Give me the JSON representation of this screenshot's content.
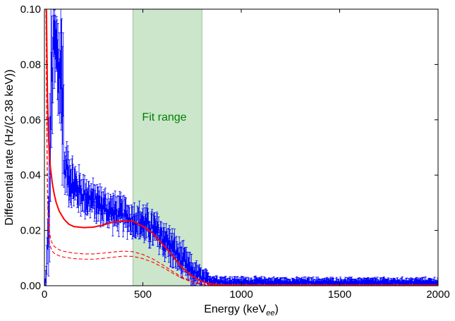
{
  "chart_data": {
    "type": "line",
    "xlabel": "Energy (keV",
    "xlabel_sub": "ee",
    "xlabel_close": ")",
    "ylabel": "Differential rate (Hz/(2.38 keV))",
    "xlim": [
      0,
      2000
    ],
    "ylim": [
      0,
      0.1
    ],
    "x_ticks": [
      0,
      500,
      1000,
      1500,
      2000
    ],
    "y_ticks": [
      0.0,
      0.02,
      0.04,
      0.06,
      0.08,
      0.1
    ],
    "y_tick_labels": [
      "0.00",
      "0.02",
      "0.04",
      "0.06",
      "0.08",
      "0.10"
    ],
    "grid": false,
    "fit_range": {
      "label": "Fit range",
      "x": [
        450,
        800
      ],
      "color": "#a9d6a9",
      "label_color": "#008000"
    },
    "data_envelope": {
      "color": "#0000ff",
      "x": [
        5,
        15,
        25,
        35,
        45,
        55,
        70,
        85,
        95,
        100,
        110,
        120,
        130,
        140,
        150,
        175,
        200,
        250,
        300,
        350,
        400,
        450,
        500,
        550,
        600,
        650,
        700,
        750,
        800,
        850,
        900,
        1000,
        1200,
        1500,
        1800,
        2000
      ],
      "high": [
        0.002,
        0.02,
        0.06,
        0.1,
        0.1,
        0.1,
        0.1,
        0.1,
        0.099,
        0.046,
        0.049,
        0.05,
        0.047,
        0.045,
        0.043,
        0.041,
        0.039,
        0.036,
        0.034,
        0.032,
        0.031,
        0.029,
        0.028,
        0.026,
        0.023,
        0.019,
        0.014,
        0.009,
        0.0055,
        0.0035,
        0.0028,
        0.0025,
        0.0023,
        0.0022,
        0.0022,
        0.0022
      ],
      "low": [
        0.0,
        0.002,
        0.01,
        0.04,
        0.07,
        0.07,
        0.06,
        0.05,
        0.04,
        0.036,
        0.035,
        0.033,
        0.031,
        0.03,
        0.029,
        0.028,
        0.027,
        0.025,
        0.023,
        0.021,
        0.02,
        0.019,
        0.017,
        0.015,
        0.012,
        0.008,
        0.004,
        0.001,
        0.0,
        0.0,
        0.0,
        0.0,
        0.0,
        0.0,
        0.0,
        0.0
      ]
    },
    "series": [
      {
        "style": "solid",
        "color": "#ff0000",
        "x": [
          10,
          15,
          20,
          25,
          30,
          40,
          50,
          60,
          75,
          100,
          125,
          150,
          200,
          250,
          300,
          350,
          400,
          450,
          500,
          550,
          600,
          650,
          700,
          750,
          800,
          850,
          900,
          1000,
          1500,
          2000
        ],
        "y": [
          0.1,
          0.07,
          0.055,
          0.047,
          0.043,
          0.037,
          0.033,
          0.03,
          0.027,
          0.024,
          0.0222,
          0.0214,
          0.021,
          0.0212,
          0.022,
          0.023,
          0.0235,
          0.0233,
          0.0215,
          0.019,
          0.015,
          0.011,
          0.0065,
          0.0035,
          0.0015,
          0.0006,
          0.0003,
          0.0002,
          0.0002,
          0.0002
        ]
      },
      {
        "style": "dashed",
        "color": "#ff0000",
        "x": [
          8,
          12,
          16,
          20,
          25,
          30,
          40,
          50,
          75,
          100,
          150,
          200,
          250,
          300,
          350,
          400,
          450,
          500,
          550,
          600,
          650,
          700,
          750,
          800,
          850,
          900,
          1000,
          2000
        ],
        "y": [
          0.1,
          0.06,
          0.035,
          0.026,
          0.02,
          0.0175,
          0.0152,
          0.0142,
          0.013,
          0.0124,
          0.0118,
          0.0115,
          0.0115,
          0.0118,
          0.0122,
          0.0125,
          0.0123,
          0.0113,
          0.0097,
          0.0076,
          0.0052,
          0.0031,
          0.0015,
          0.0006,
          0.0002,
          0.0001,
          0.0,
          0.0
        ]
      },
      {
        "style": "dashed",
        "color": "#ff0000",
        "x": [
          8,
          12,
          16,
          20,
          25,
          30,
          40,
          50,
          75,
          100,
          150,
          200,
          250,
          300,
          350,
          400,
          450,
          500,
          550,
          600,
          650,
          700,
          750,
          800,
          850,
          900,
          1000,
          2000
        ],
        "y": [
          0.1,
          0.055,
          0.03,
          0.021,
          0.016,
          0.0142,
          0.0125,
          0.0117,
          0.0108,
          0.0103,
          0.0098,
          0.0096,
          0.0096,
          0.0099,
          0.0103,
          0.0107,
          0.0106,
          0.0098,
          0.0085,
          0.0067,
          0.0046,
          0.0027,
          0.0013,
          0.0005,
          0.0001,
          0.0,
          0.0,
          0.0
        ]
      }
    ]
  }
}
